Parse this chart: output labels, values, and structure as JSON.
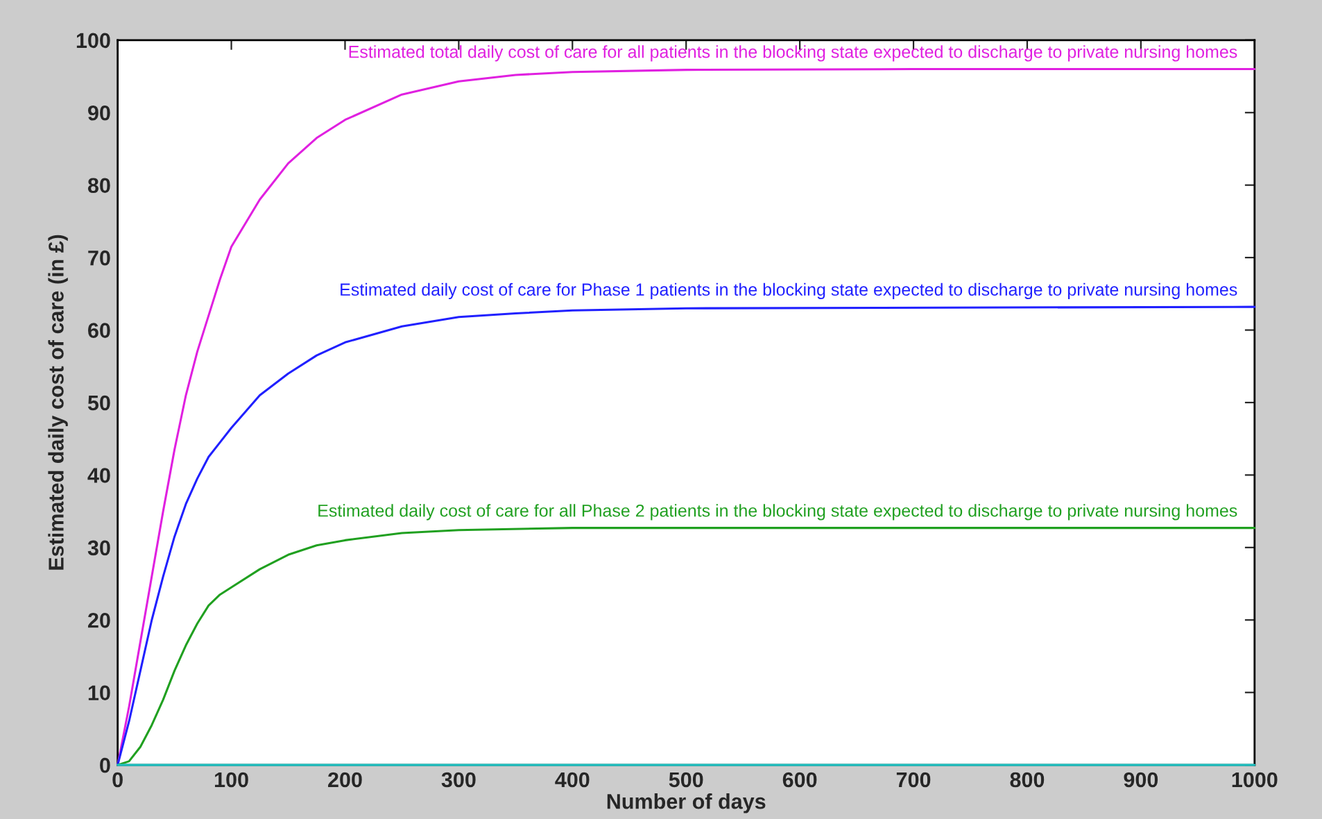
{
  "chart_data": {
    "type": "line",
    "xlabel": "Number of days",
    "ylabel": "Estimated daily cost of care (in £)",
    "xlim": [
      0,
      1000
    ],
    "ylim": [
      0,
      100
    ],
    "xticks": [
      0,
      100,
      200,
      300,
      400,
      500,
      600,
      700,
      800,
      900,
      1000
    ],
    "yticks": [
      0,
      10,
      20,
      30,
      40,
      50,
      60,
      70,
      80,
      90,
      100
    ],
    "grid": false,
    "legend": false,
    "marker": "none",
    "line_style": "solid",
    "series": [
      {
        "name": "Estimated total daily cost of care for all patients in the blocking state expected to discharge to private nursing homes",
        "color": "#e020e0",
        "x": [
          0,
          10,
          20,
          30,
          40,
          50,
          60,
          70,
          80,
          90,
          100,
          125,
          150,
          175,
          200,
          250,
          300,
          350,
          400,
          500,
          700,
          1000
        ],
        "values": [
          0,
          8,
          17,
          26,
          35,
          43.5,
          51,
          57,
          62,
          67,
          71.5,
          78,
          83,
          86.5,
          89,
          92.5,
          94.3,
          95.2,
          95.6,
          95.9,
          96,
          96
        ]
      },
      {
        "name": "Estimated daily cost of care for Phase 1 patients in the blocking state expected to discharge to private nursing homes",
        "color": "#2020ff",
        "x": [
          0,
          10,
          20,
          30,
          40,
          50,
          60,
          70,
          80,
          90,
          100,
          125,
          150,
          175,
          200,
          250,
          300,
          350,
          400,
          500,
          1000
        ],
        "values": [
          0,
          6,
          13,
          20,
          26,
          31.5,
          36,
          39.5,
          42.5,
          44.5,
          46.5,
          51,
          54,
          56.5,
          58.3,
          60.5,
          61.8,
          62.3,
          62.7,
          63,
          63.2
        ]
      },
      {
        "name": "Estimated daily cost of care for all Phase 2 patients in the blocking state expected to discharge to private nursing homes",
        "color": "#20a020",
        "x": [
          0,
          10,
          20,
          30,
          40,
          50,
          60,
          70,
          80,
          90,
          100,
          125,
          150,
          175,
          200,
          250,
          300,
          400,
          1000
        ],
        "values": [
          0,
          0.5,
          2.5,
          5.5,
          9,
          13,
          16.5,
          19.5,
          22,
          23.5,
          24.5,
          27,
          29,
          30.3,
          31,
          32,
          32.4,
          32.7,
          32.7
        ]
      },
      {
        "color": "#20c0c0",
        "x": [
          0,
          1000
        ],
        "values": [
          0,
          0
        ]
      }
    ]
  }
}
